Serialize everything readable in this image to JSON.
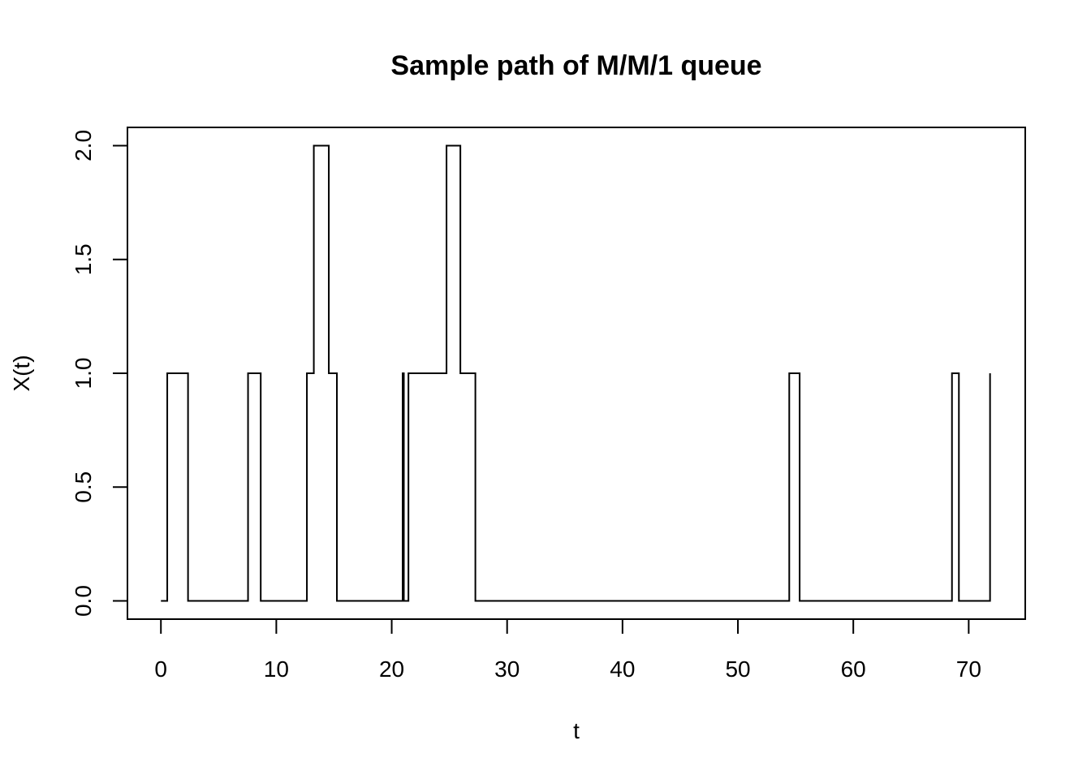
{
  "chart_data": {
    "type": "line",
    "step": true,
    "title": "Sample path of M/M/1 queue",
    "xlabel": "t",
    "ylabel": "X(t)",
    "xlim": [
      -2.9,
      74.9
    ],
    "ylim": [
      -0.08,
      2.08
    ],
    "xticks": [
      0,
      10,
      20,
      30,
      40,
      50,
      60,
      70
    ],
    "yticks": [
      0.0,
      0.5,
      1.0,
      1.5,
      2.0
    ],
    "xtick_labels": [
      "0",
      "10",
      "20",
      "30",
      "40",
      "50",
      "60",
      "70"
    ],
    "ytick_labels": [
      "0.0",
      "0.5",
      "1.0",
      "1.5",
      "2.0"
    ],
    "grid": false,
    "legend": "none",
    "line_color": "#000000",
    "series": [
      {
        "x": [
          0,
          0.55,
          2.35,
          7.55,
          8.65,
          12.65,
          13.25,
          14.55,
          15.25,
          20.95,
          21.05,
          21.45,
          24.75,
          25.95,
          27.25,
          54.45,
          55.35,
          68.55,
          69.15,
          71.85
        ],
        "y": [
          0,
          1,
          0,
          1,
          0,
          1,
          2,
          1,
          0,
          1,
          0,
          1,
          2,
          1,
          0,
          1,
          0,
          1,
          0,
          1
        ]
      }
    ]
  }
}
